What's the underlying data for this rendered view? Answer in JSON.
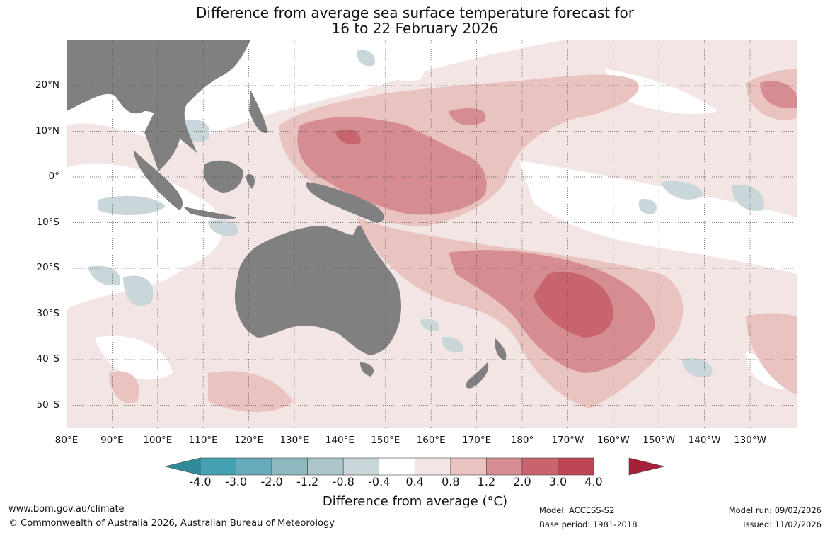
{
  "title": {
    "line1": "Difference from average sea surface temperature forecast for",
    "line2": "16 to 22 February 2026"
  },
  "map": {
    "longitude_labels": [
      "80°E",
      "90°E",
      "100°E",
      "110°E",
      "120°E",
      "130°E",
      "140°E",
      "150°E",
      "160°E",
      "170°E",
      "180°",
      "170°W",
      "160°W",
      "150°W",
      "140°W",
      "130°W"
    ],
    "latitude_labels": [
      "20°N",
      "10°N",
      "0°",
      "10°S",
      "20°S",
      "30°S",
      "40°S",
      "50°S"
    ],
    "land_color": "#808080",
    "grid": "dotted"
  },
  "colorbar": {
    "title": "Difference from average (°C)",
    "tick_labels": [
      "-4.0",
      "-3.0",
      "-2.0",
      "-1.2",
      "-0.8",
      "-0.4",
      "0.4",
      "0.8",
      "1.2",
      "2.0",
      "3.0",
      "4.0"
    ],
    "colors": [
      "#45a0b1",
      "#67aab9",
      "#8cb8c0",
      "#abc6ca",
      "#c9d7da",
      "#ffffff",
      "#f3e5e4",
      "#e8c3c0",
      "#d68d92",
      "#c7646d",
      "#bc4551"
    ],
    "under_color": "#2f8a99",
    "over_color": "#a5213a"
  },
  "footer": {
    "website": "www.bom.gov.au/climate",
    "copyright": "© Commonwealth of Australia 2026, Australian Bureau of Meteorology",
    "model": "Model: ACCESS-S2",
    "base_period": "Base period: 1981-2018",
    "model_run": "Model run: 09/02/2026",
    "issued": "Issued: 11/02/2026"
  }
}
